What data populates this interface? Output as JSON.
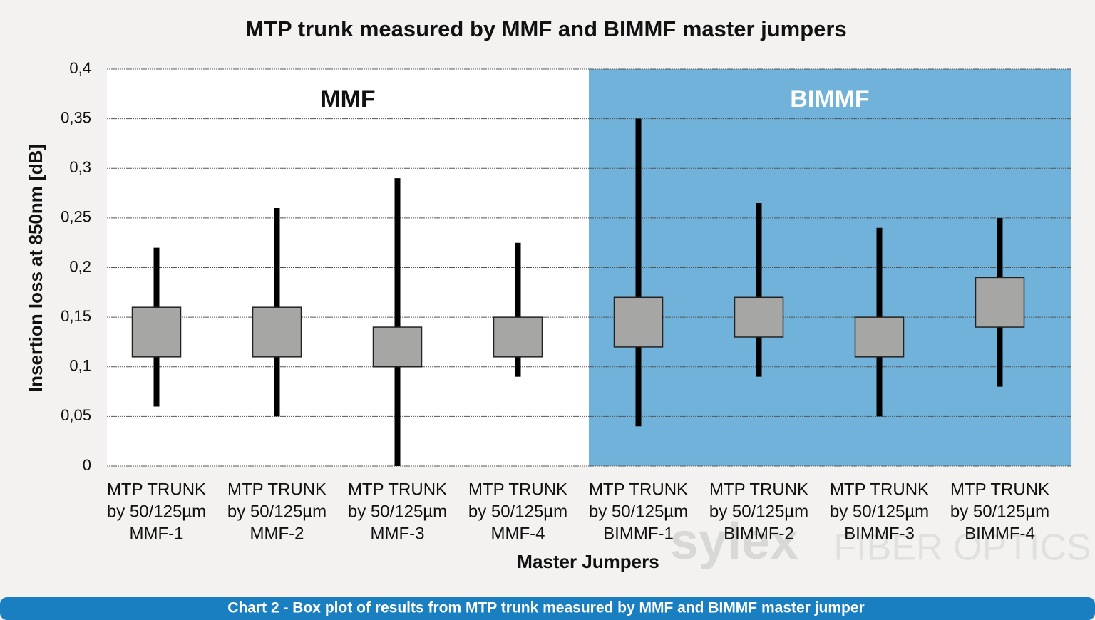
{
  "chart_data": {
    "type": "box",
    "title": "MTP trunk measured by MMF and BIMMF master jumpers",
    "y_label": "Insertion loss at 850nm [dB]",
    "x_label": "Master Jumpers",
    "caption": "Chart 2 - Box plot of results from MTP trunk measured by MMF and BIMMF master jumper",
    "watermark": [
      "sylex",
      "FIBER OPTICS"
    ],
    "regions": [
      {
        "label": "MMF",
        "color": "#ffffff",
        "text_color": "#111111"
      },
      {
        "label": "BIMMF",
        "color": "#70b2d9",
        "text_color": "#ffffff"
      }
    ],
    "categories": [
      [
        "MTP TRUNK",
        "by 50/125µm",
        "MMF-1"
      ],
      [
        "MTP TRUNK",
        "by 50/125µm",
        "MMF-2"
      ],
      [
        "MTP TRUNK",
        "by 50/125µm",
        "MMF-3"
      ],
      [
        "MTP TRUNK",
        "by 50/125µm",
        "MMF-4"
      ],
      [
        "MTP TRUNK",
        "by 50/125µm",
        "BIMMF-1"
      ],
      [
        "MTP TRUNK",
        "by 50/125µm",
        "BIMMF-2"
      ],
      [
        "MTP TRUNK",
        "by 50/125µm",
        "BIMMF-3"
      ],
      [
        "MTP TRUNK",
        "by 50/125µm",
        "BIMMF-4"
      ]
    ],
    "min": [
      0.06,
      0.05,
      0,
      0.09,
      0.04,
      0.09,
      0.05,
      0.08
    ],
    "q1": [
      0.11,
      0.11,
      0.1,
      0.11,
      0.12,
      0.13,
      0.11,
      0.14
    ],
    "q3": [
      0.16,
      0.16,
      0.14,
      0.15,
      0.17,
      0.17,
      0.15,
      0.19
    ],
    "max": [
      0.22,
      0.26,
      0.29,
      0.225,
      0.35,
      0.265,
      0.24,
      0.25
    ],
    "box_color": "#a6a6a4",
    "whisker_color": "#000000",
    "ylim": [
      0,
      0.4
    ],
    "yticks": [
      0,
      {
        "value": 0.05,
        "label": "0,05"
      },
      {
        "value": 0.1,
        "label": "0,1"
      },
      {
        "value": 0.15,
        "label": "0,15"
      },
      {
        "value": 0.2,
        "label": "0,2"
      },
      {
        "value": 0.25,
        "label": "0,25"
      },
      {
        "value": 0.3,
        "label": "0,3"
      },
      {
        "value": 0.35,
        "label": "0,35"
      },
      {
        "value": 0.4,
        "label": "0,4"
      }
    ],
    "grid": true
  }
}
